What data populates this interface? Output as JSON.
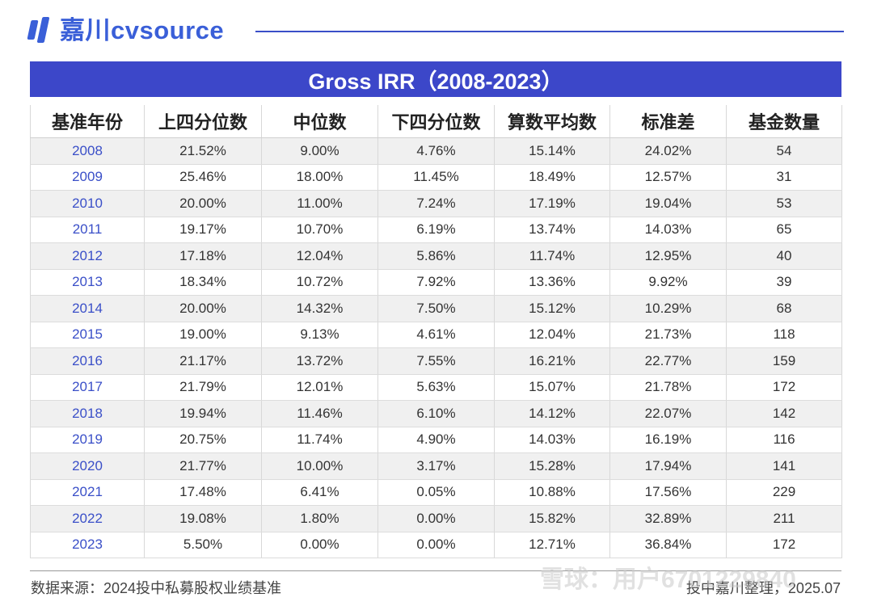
{
  "brand": {
    "name": "嘉川cvsource",
    "accent": "#3a5fd8"
  },
  "title": "Gross IRR（2008-2023）",
  "table": {
    "headers": [
      "基准年份",
      "上四分位数",
      "中位数",
      "下四分位数",
      "算数平均数",
      "标准差",
      "基金数量"
    ],
    "rows": [
      [
        "2008",
        "21.52%",
        "9.00%",
        "4.76%",
        "15.14%",
        "24.02%",
        "54"
      ],
      [
        "2009",
        "25.46%",
        "18.00%",
        "11.45%",
        "18.49%",
        "12.57%",
        "31"
      ],
      [
        "2010",
        "20.00%",
        "11.00%",
        "7.24%",
        "17.19%",
        "19.04%",
        "53"
      ],
      [
        "2011",
        "19.17%",
        "10.70%",
        "6.19%",
        "13.74%",
        "14.03%",
        "65"
      ],
      [
        "2012",
        "17.18%",
        "12.04%",
        "5.86%",
        "11.74%",
        "12.95%",
        "40"
      ],
      [
        "2013",
        "18.34%",
        "10.72%",
        "7.92%",
        "13.36%",
        "9.92%",
        "39"
      ],
      [
        "2014",
        "20.00%",
        "14.32%",
        "7.50%",
        "15.12%",
        "10.29%",
        "68"
      ],
      [
        "2015",
        "19.00%",
        "9.13%",
        "4.61%",
        "12.04%",
        "21.73%",
        "118"
      ],
      [
        "2016",
        "21.17%",
        "13.72%",
        "7.55%",
        "16.21%",
        "22.77%",
        "159"
      ],
      [
        "2017",
        "21.79%",
        "12.01%",
        "5.63%",
        "15.07%",
        "21.78%",
        "172"
      ],
      [
        "2018",
        "19.94%",
        "11.46%",
        "6.10%",
        "14.12%",
        "22.07%",
        "142"
      ],
      [
        "2019",
        "20.75%",
        "11.74%",
        "4.90%",
        "14.03%",
        "16.19%",
        "116"
      ],
      [
        "2020",
        "21.77%",
        "10.00%",
        "3.17%",
        "15.28%",
        "17.94%",
        "141"
      ],
      [
        "2021",
        "17.48%",
        "6.41%",
        "0.05%",
        "10.88%",
        "17.56%",
        "229"
      ],
      [
        "2022",
        "19.08%",
        "1.80%",
        "0.00%",
        "15.82%",
        "32.89%",
        "211"
      ],
      [
        "2023",
        "5.50%",
        "0.00%",
        "0.00%",
        "12.71%",
        "36.84%",
        "172"
      ]
    ]
  },
  "footer": {
    "source": "数据来源：2024投中私募股权业绩基准",
    "compiled": "投中嘉川整理，2025.07"
  },
  "watermark": "雪球：用户6701229840"
}
